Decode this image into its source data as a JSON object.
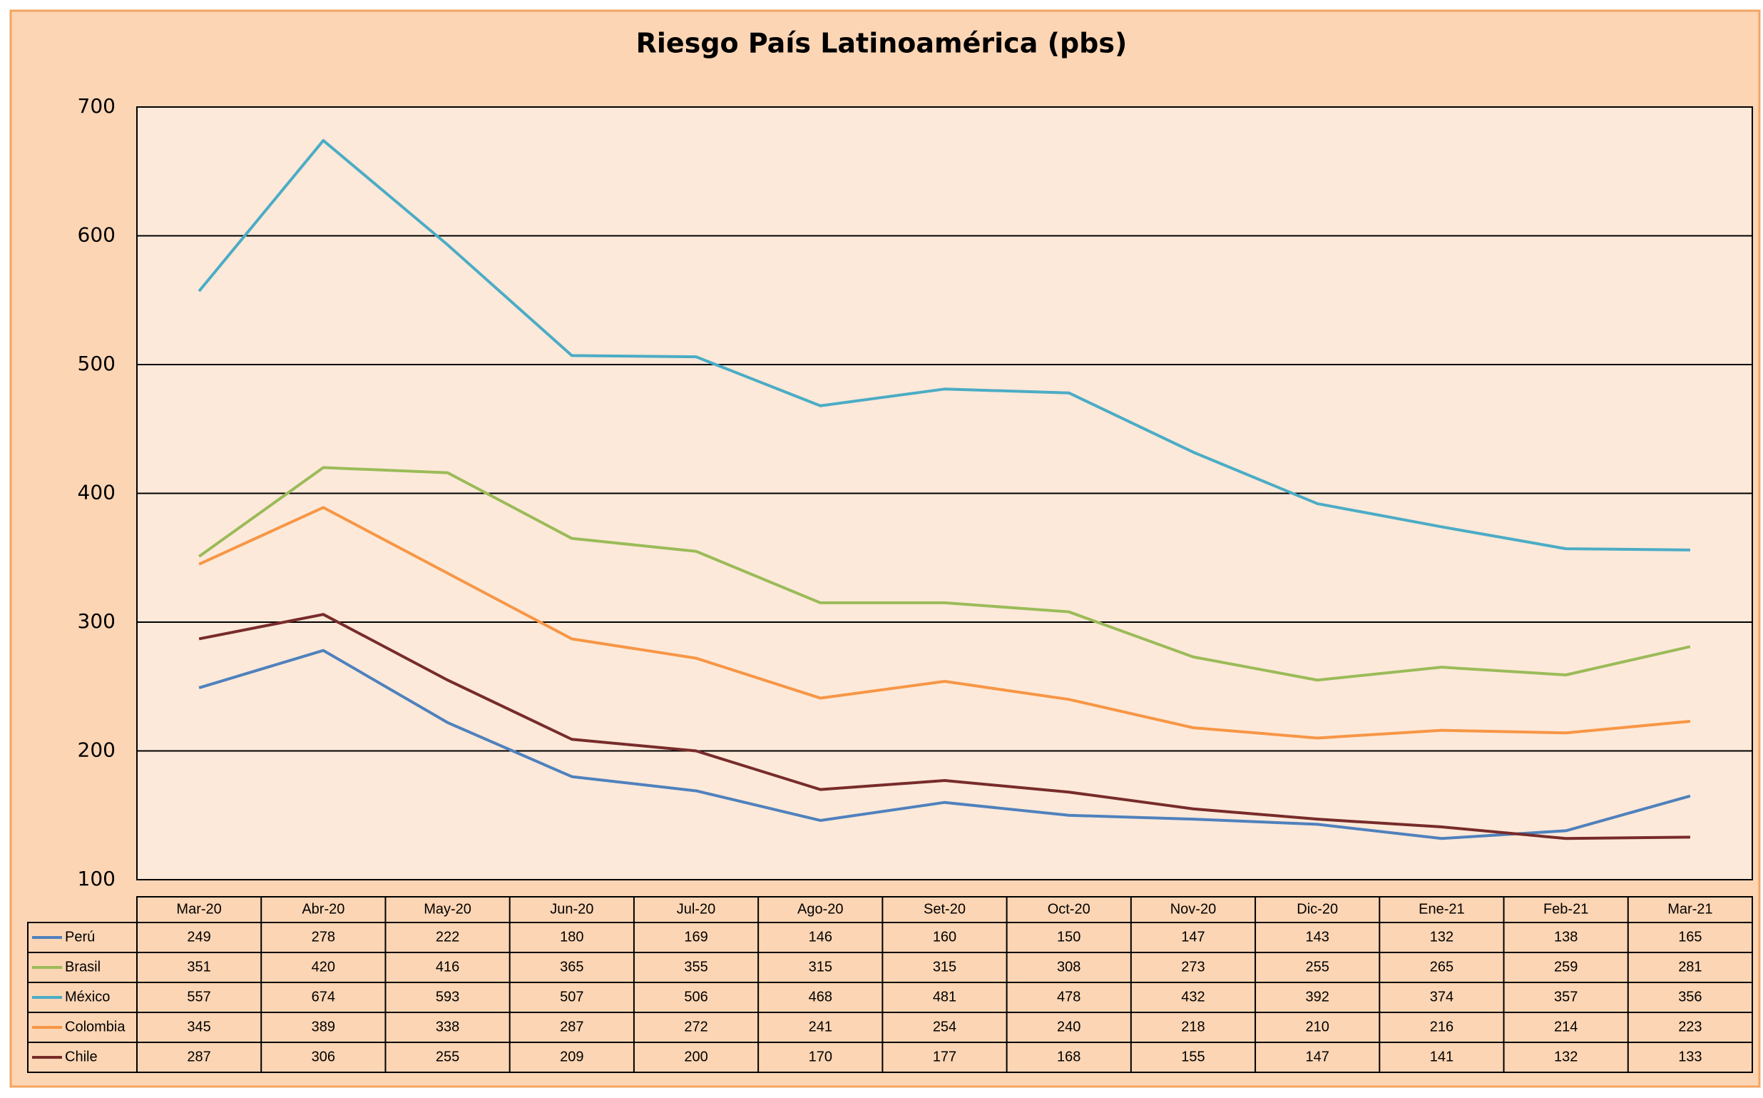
{
  "chart_data": {
    "type": "line",
    "title": "Riesgo País Latinoamérica (pbs)",
    "categories": [
      "Mar-20",
      "Abr-20",
      "May-20",
      "Jun-20",
      "Jul-20",
      "Ago-20",
      "Set-20",
      "Oct-20",
      "Nov-20",
      "Dic-20",
      "Ene-21",
      "Feb-21",
      "Mar-21"
    ],
    "series": [
      {
        "name": "Perú",
        "color": "#4f81bd",
        "values": [
          249,
          278,
          222,
          180,
          169,
          146,
          160,
          150,
          147,
          143,
          132,
          138,
          165
        ]
      },
      {
        "name": "Brasil",
        "color": "#9bbb59",
        "values": [
          351,
          420,
          416,
          365,
          355,
          315,
          315,
          308,
          273,
          255,
          265,
          259,
          281
        ]
      },
      {
        "name": "México",
        "color": "#4bacc6",
        "values": [
          557,
          674,
          593,
          507,
          506,
          468,
          481,
          478,
          432,
          392,
          374,
          357,
          356
        ]
      },
      {
        "name": "Colombia",
        "color": "#f79646",
        "values": [
          345,
          389,
          338,
          287,
          272,
          241,
          254,
          240,
          218,
          210,
          216,
          214,
          223
        ]
      },
      {
        "name": "Chile",
        "color": "#772c2a",
        "values": [
          287,
          306,
          255,
          209,
          200,
          170,
          177,
          168,
          155,
          147,
          141,
          132,
          133
        ]
      }
    ],
    "ylim": [
      100,
      700
    ],
    "yticks": [
      100,
      200,
      300,
      400,
      500,
      600,
      700
    ],
    "grid": true
  }
}
